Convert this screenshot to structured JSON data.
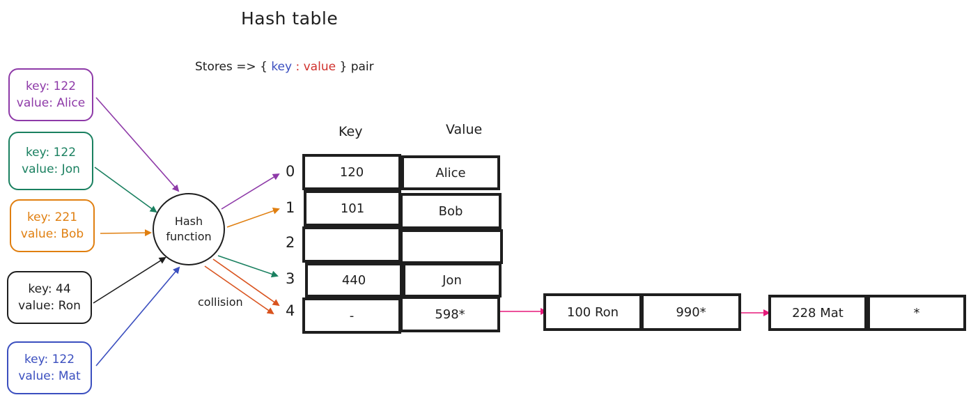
{
  "title": "Hash table",
  "subtitle": {
    "prefix": "Stores => {",
    "key_word": "key",
    "colon": ":",
    "value_word": "value",
    "suffix": "} pair"
  },
  "entries": [
    {
      "key_text": "key: 122",
      "value_text": "value: Alice",
      "color": "#8e3aa8"
    },
    {
      "key_text": "key: 122",
      "value_text": "value: Jon",
      "color": "#1a8060"
    },
    {
      "key_text": "key: 221",
      "value_text": "value: Bob",
      "color": "#e07f10"
    },
    {
      "key_text": "key: 44",
      "value_text": "value: Ron",
      "color": "#1e1e1e"
    },
    {
      "key_text": "key: 122",
      "value_text": "value: Mat",
      "color": "#3b4fbf"
    }
  ],
  "hash_function": {
    "line1": "Hash",
    "line2": "function"
  },
  "table": {
    "key_header": "Key",
    "value_header": "Value",
    "rows": [
      {
        "index": "0",
        "key": "120",
        "value": "Alice"
      },
      {
        "index": "1",
        "key": "101",
        "value": "Bob"
      },
      {
        "index": "2",
        "key": "",
        "value": ""
      },
      {
        "index": "3",
        "key": "440",
        "value": "Jon"
      },
      {
        "index": "4",
        "key": "-",
        "value": "598*"
      }
    ]
  },
  "collision_label": "collision",
  "chain_nodes": [
    {
      "data": "100 Ron",
      "pointer": "990*"
    },
    {
      "data": "228 Mat",
      "pointer": "*"
    }
  ],
  "colors": {
    "purple": "#8e3aa8",
    "green": "#1a8060",
    "orange": "#e07f10",
    "black": "#1e1e1e",
    "blue": "#3b4fbf",
    "red_orange": "#d9531e",
    "pink": "#e6197a",
    "value_red": "#d0312d"
  }
}
